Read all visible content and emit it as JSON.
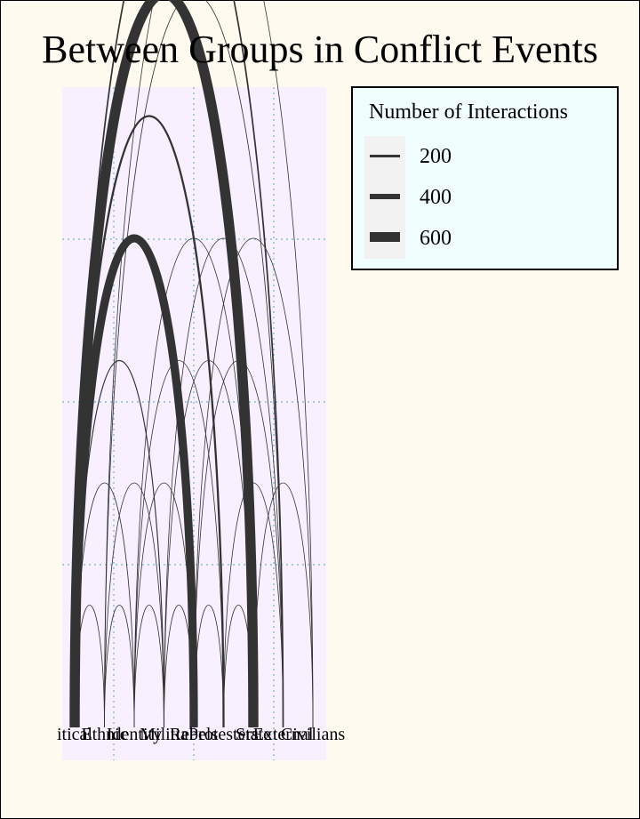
{
  "title": "Between Groups in Conflict Events",
  "chart_data": {
    "type": "arc",
    "title": "Between Groups in Conflict Events",
    "nodes": [
      "itical",
      "Ethnic",
      "Identity",
      "Militia",
      "Rebels",
      "Protesters",
      "State",
      "External",
      "Civilians"
    ],
    "arcs": [
      {
        "from": 0,
        "to": 1,
        "weight": 40
      },
      {
        "from": 0,
        "to": 2,
        "weight": 60
      },
      {
        "from": 0,
        "to": 3,
        "weight": 80
      },
      {
        "from": 0,
        "to": 4,
        "weight": 650
      },
      {
        "from": 0,
        "to": 5,
        "weight": 160
      },
      {
        "from": 0,
        "to": 6,
        "weight": 800
      },
      {
        "from": 0,
        "to": 7,
        "weight": 120
      },
      {
        "from": 1,
        "to": 2,
        "weight": 40
      },
      {
        "from": 1,
        "to": 3,
        "weight": 50
      },
      {
        "from": 1,
        "to": 7,
        "weight": 60
      },
      {
        "from": 1,
        "to": 8,
        "weight": 20
      },
      {
        "from": 2,
        "to": 3,
        "weight": 40
      },
      {
        "from": 2,
        "to": 4,
        "weight": 40
      },
      {
        "from": 2,
        "to": 5,
        "weight": 50
      },
      {
        "from": 2,
        "to": 6,
        "weight": 50
      },
      {
        "from": 3,
        "to": 4,
        "weight": 40
      },
      {
        "from": 3,
        "to": 6,
        "weight": 40
      },
      {
        "from": 3,
        "to": 7,
        "weight": 30
      },
      {
        "from": 4,
        "to": 5,
        "weight": 30
      },
      {
        "from": 4,
        "to": 7,
        "weight": 40
      },
      {
        "from": 4,
        "to": 8,
        "weight": 30
      },
      {
        "from": 5,
        "to": 6,
        "weight": 40
      },
      {
        "from": 5,
        "to": 7,
        "weight": 30
      },
      {
        "from": 6,
        "to": 8,
        "weight": 30
      }
    ],
    "legend": {
      "title": "Number of Interactions",
      "entries": [
        200,
        400,
        600
      ],
      "position": "top-right"
    },
    "grid": true
  },
  "legend": {
    "title": "Number of Interactions",
    "labels": [
      "200",
      "400",
      "600"
    ]
  },
  "colors": {
    "background": "#fffaf0",
    "panel": "#f8f0ff",
    "legend_background": "#f0fffe",
    "legend_keys": "#f2f2f2",
    "arc": "#333333",
    "grid": "#6fb3c8"
  }
}
